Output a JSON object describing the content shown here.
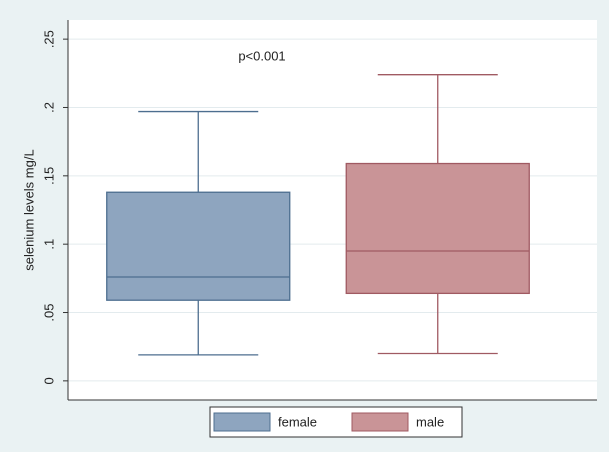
{
  "chart_data": {
    "type": "box",
    "y_label": "selenium levels mg/L",
    "annotation": "p<0.001",
    "ylim": [
      -0.014,
      0.264
    ],
    "yticks": [
      0,
      {
        "value": 0.05,
        "label": ".05"
      },
      {
        "value": 0.1,
        "label": ".1"
      },
      {
        "value": 0.15,
        "label": ".15"
      },
      {
        "value": 0.2,
        "label": ".2"
      },
      {
        "value": 0.25,
        "label": ".25"
      }
    ],
    "grid": true,
    "legend": "bottom",
    "series": [
      {
        "name": "female",
        "color": "#8ea5bf",
        "edge": "#4d6e8f",
        "min": 0.019,
        "q1": 0.059,
        "median": 0.076,
        "q3": 0.138,
        "max": 0.197
      },
      {
        "name": "male",
        "color": "#c99497",
        "edge": "#a05a62",
        "min": 0.02,
        "q1": 0.064,
        "median": 0.095,
        "q3": 0.159,
        "max": 0.224
      }
    ]
  }
}
